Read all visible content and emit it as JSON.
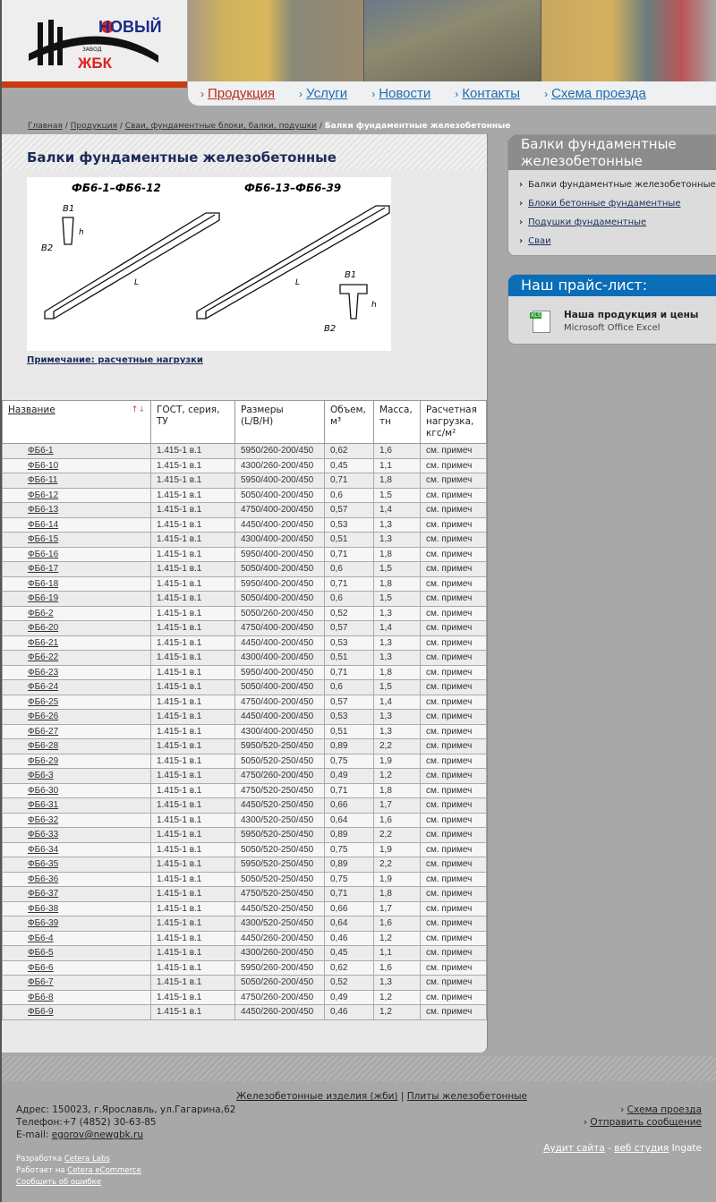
{
  "logo": {
    "text_top": "НОВЫЙ",
    "text_small": "ЗАВОД",
    "text_bottom": "ЖБК"
  },
  "nav": [
    {
      "label": "Продукция",
      "active": true
    },
    {
      "label": "Услуги"
    },
    {
      "label": "Новости"
    },
    {
      "label": "Контакты"
    },
    {
      "label": "Схема проезда"
    }
  ],
  "breadcrumb": [
    "Главная",
    "Продукция",
    "Сваи, фундаментные блоки, балки, подушки",
    "Балки фундаментные железобетонные"
  ],
  "page_title": "Балки фундаментные железобетонные",
  "drawing": {
    "left_label": "ФБ6-1–ФБ6-12",
    "right_label": "ФБ6-13–ФБ6-39",
    "b1": "B1",
    "b2": "B2",
    "h": "h",
    "l": "L"
  },
  "note_link": "Примечание: расчетные нагрузки",
  "table": {
    "headers": [
      "Название",
      "ГОСТ, серия, ТУ",
      "Размеры (L/B/H)",
      "Объем, м³",
      "Масса, тн",
      "Расчетная нагрузка, кгс/м²"
    ],
    "sort_icons": [
      "sort-asc-icon",
      "sort-desc-icon"
    ],
    "rows": [
      [
        "ФБ6-1",
        "1.415-1 в.1",
        "5950/260-200/450",
        "0,62",
        "1,6",
        "см. примеч"
      ],
      [
        "ФБ6-10",
        "1.415-1 в.1",
        "4300/260-200/450",
        "0,45",
        "1,1",
        "см. примеч"
      ],
      [
        "ФБ6-11",
        "1.415-1 в.1",
        "5950/400-200/450",
        "0,71",
        "1,8",
        "см. примеч"
      ],
      [
        "ФБ6-12",
        "1.415-1 в.1",
        "5050/400-200/450",
        "0,6",
        "1,5",
        "см. примеч"
      ],
      [
        "ФБ6-13",
        "1.415-1 в.1",
        "4750/400-200/450",
        "0,57",
        "1,4",
        "см. примеч"
      ],
      [
        "ФБ6-14",
        "1.415-1 в.1",
        "4450/400-200/450",
        "0,53",
        "1,3",
        "см. примеч"
      ],
      [
        "ФБ6-15",
        "1.415-1 в.1",
        "4300/400-200/450",
        "0,51",
        "1,3",
        "см. примеч"
      ],
      [
        "ФБ6-16",
        "1.415-1 в.1",
        "5950/400-200/450",
        "0,71",
        "1,8",
        "см. примеч"
      ],
      [
        "ФБ6-17",
        "1.415-1 в.1",
        "5050/400-200/450",
        "0,6",
        "1,5",
        "см. примеч"
      ],
      [
        "ФБ6-18",
        "1.415-1 в.1",
        "5950/400-200/450",
        "0,71",
        "1,8",
        "см. примеч"
      ],
      [
        "ФБ6-19",
        "1.415-1 в.1",
        "5050/400-200/450",
        "0,6",
        "1,5",
        "см. примеч"
      ],
      [
        "ФБ6-2",
        "1.415-1 в.1",
        "5050/260-200/450",
        "0,52",
        "1,3",
        "см. примеч"
      ],
      [
        "ФБ6-20",
        "1.415-1 в.1",
        "4750/400-200/450",
        "0,57",
        "1,4",
        "см. примеч"
      ],
      [
        "ФБ6-21",
        "1.415-1 в.1",
        "4450/400-200/450",
        "0,53",
        "1,3",
        "см. примеч"
      ],
      [
        "ФБ6-22",
        "1.415-1 в.1",
        "4300/400-200/450",
        "0,51",
        "1,3",
        "см. примеч"
      ],
      [
        "ФБ6-23",
        "1.415-1 в.1",
        "5950/400-200/450",
        "0,71",
        "1,8",
        "см. примеч"
      ],
      [
        "ФБ6-24",
        "1.415-1 в.1",
        "5050/400-200/450",
        "0,6",
        "1,5",
        "см. примеч"
      ],
      [
        "ФБ6-25",
        "1.415-1 в.1",
        "4750/400-200/450",
        "0,57",
        "1,4",
        "см. примеч"
      ],
      [
        "ФБ6-26",
        "1.415-1 в.1",
        "4450/400-200/450",
        "0,53",
        "1,3",
        "см. примеч"
      ],
      [
        "ФБ6-27",
        "1.415-1 в.1",
        "4300/400-200/450",
        "0,51",
        "1,3",
        "см. примеч"
      ],
      [
        "ФБ6-28",
        "1.415-1 в.1",
        "5950/520-250/450",
        "0,89",
        "2,2",
        "см. примеч"
      ],
      [
        "ФБ6-29",
        "1.415-1 в.1",
        "5050/520-250/450",
        "0,75",
        "1,9",
        "см. примеч"
      ],
      [
        "ФБ6-3",
        "1.415-1 в.1",
        "4750/260-200/450",
        "0,49",
        "1,2",
        "см. примеч"
      ],
      [
        "ФБ6-30",
        "1.415-1 в.1",
        "4750/520-250/450",
        "0,71",
        "1,8",
        "см. примеч"
      ],
      [
        "ФБ6-31",
        "1.415-1 в.1",
        "4450/520-250/450",
        "0,66",
        "1,7",
        "см. примеч"
      ],
      [
        "ФБ6-32",
        "1.415-1 в.1",
        "4300/520-250/450",
        "0,64",
        "1,6",
        "см. примеч"
      ],
      [
        "ФБ6-33",
        "1.415-1 в.1",
        "5950/520-250/450",
        "0,89",
        "2,2",
        "см. примеч"
      ],
      [
        "ФБ6-34",
        "1.415-1 в.1",
        "5050/520-250/450",
        "0,75",
        "1,9",
        "см. примеч"
      ],
      [
        "ФБ6-35",
        "1.415-1 в.1",
        "5950/520-250/450",
        "0,89",
        "2,2",
        "см. примеч"
      ],
      [
        "ФБ6-36",
        "1.415-1 в.1",
        "5050/520-250/450",
        "0,75",
        "1,9",
        "см. примеч"
      ],
      [
        "ФБ6-37",
        "1.415-1 в.1",
        "4750/520-250/450",
        "0,71",
        "1,8",
        "см. примеч"
      ],
      [
        "ФБ6-38",
        "1.415-1 в.1",
        "4450/520-250/450",
        "0,66",
        "1,7",
        "см. примеч"
      ],
      [
        "ФБ6-39",
        "1.415-1 в.1",
        "4300/520-250/450",
        "0,64",
        "1,6",
        "см. примеч"
      ],
      [
        "ФБ6-4",
        "1.415-1 в.1",
        "4450/260-200/450",
        "0,46",
        "1,2",
        "см. примеч"
      ],
      [
        "ФБ6-5",
        "1.415-1 в.1",
        "4300/260-200/450",
        "0,45",
        "1,1",
        "см. примеч"
      ],
      [
        "ФБ6-6",
        "1.415-1 в.1",
        "5950/260-200/450",
        "0,62",
        "1,6",
        "см. примеч"
      ],
      [
        "ФБ6-7",
        "1.415-1 в.1",
        "5050/260-200/450",
        "0,52",
        "1,3",
        "см. примеч"
      ],
      [
        "ФБ6-8",
        "1.415-1 в.1",
        "4750/260-200/450",
        "0,49",
        "1,2",
        "см. примеч"
      ],
      [
        "ФБ6-9",
        "1.415-1 в.1",
        "4450/260-200/450",
        "0,46",
        "1,2",
        "см. примеч"
      ]
    ]
  },
  "sidebar": {
    "title": "Балки фундаментные железобетонные",
    "items": [
      {
        "label": "Балки фундаментные железобетонные",
        "current": true
      },
      {
        "label": "Блоки бетонные фундаментные"
      },
      {
        "label": "Подушки фундаментные"
      },
      {
        "label": "Сваи"
      }
    ]
  },
  "price": {
    "title": "Наш прайс-лист:",
    "badge": "XLS",
    "name": "Наша продукция и цены",
    "sub": "Microsoft Office Excel"
  },
  "footer": {
    "link1": "Железобетонные изделия (жби)",
    "sep": "|",
    "link2": "Плиты железобетонные",
    "address": "Адрес: 150023, г.Ярославль, ул.Гагарина,62",
    "phone": "Телефон:+7 (4852) 30-63-85",
    "email_label": "E-mail: ",
    "email": "egorov@newgbk.ru",
    "route": "Схема проезда",
    "message": "Отправить сообщение",
    "audit": "Аудит сайта",
    "dash": " - ",
    "studio": "веб студия",
    "ingate": " Ingate",
    "dev_label": "Разработка ",
    "dev": "Cetera Labs",
    "works_label": "Работает на ",
    "works": "Cetera eCommerce",
    "report": "Сообщить об ошибке"
  },
  "colors": {
    "accent": "#1f6db0",
    "active": "#b5301a",
    "price_header": "#0a6db8",
    "background": "#a8a8a8"
  }
}
